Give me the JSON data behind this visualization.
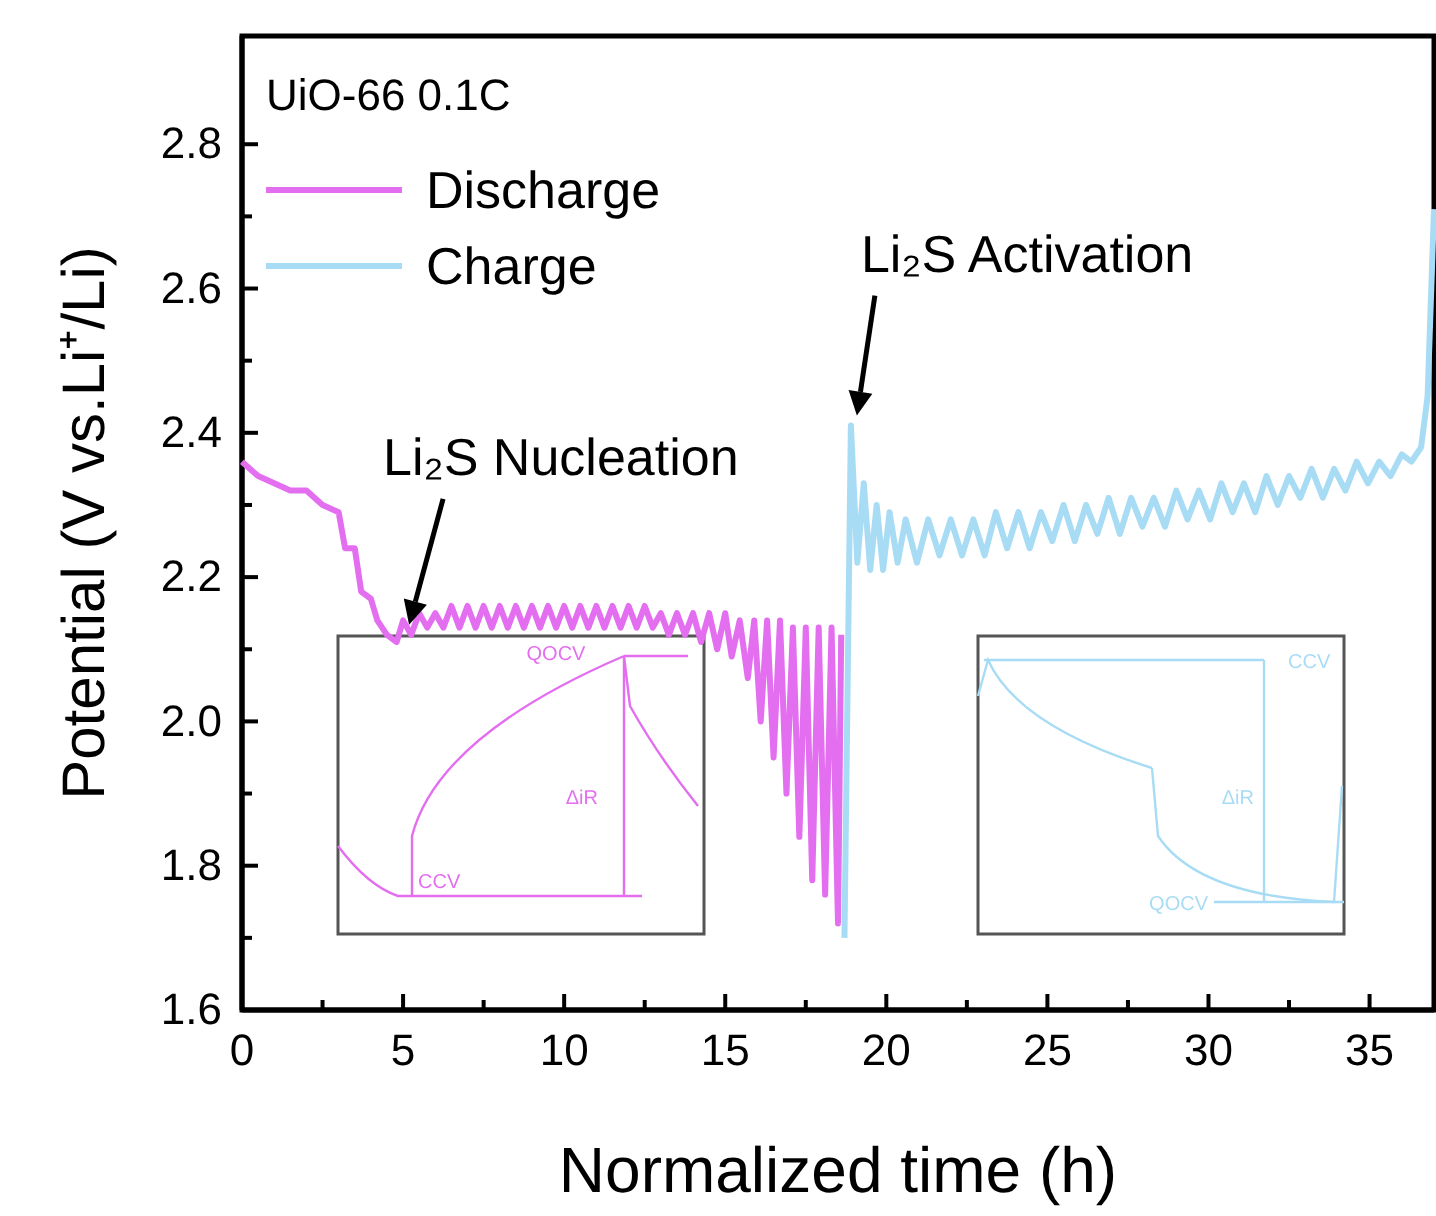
{
  "chart_data": {
    "type": "line",
    "xlabel": "Normalized time (h)",
    "ylabel": "Potential (V vs.Li⁺/Li)",
    "legend_title": "UiO-66 0.1C",
    "legend": "top left",
    "xlim": [
      0,
      37
    ],
    "ylim": [
      1.6,
      2.95
    ],
    "xticks": [
      0,
      {
        "value": 2.5,
        "label": null
      },
      5,
      {
        "value": 7.5,
        "label": null
      },
      10,
      {
        "value": 12.5,
        "label": null
      },
      15,
      {
        "value": 17.5,
        "label": null
      },
      20,
      {
        "value": 22.5,
        "label": null
      },
      25,
      {
        "value": 27.5,
        "label": null
      },
      30,
      {
        "value": 32.5,
        "label": null
      },
      35
    ],
    "yticks": [
      1.6,
      {
        "value": 1.7,
        "label": null
      },
      1.8,
      {
        "value": 1.9,
        "label": null
      },
      {
        "value": 2,
        "label": "2.0"
      },
      {
        "value": 2.1,
        "label": null
      },
      2.2,
      {
        "value": 2.3,
        "label": null
      },
      2.4,
      {
        "value": 2.5,
        "label": null
      },
      2.6,
      {
        "value": 2.7,
        "label": null
      },
      2.8
    ],
    "grid": false,
    "line_style": "solid",
    "marker": "none",
    "series": [
      {
        "name": "Discharge",
        "color": "#e36ef0",
        "x": [
          0,
          0.5,
          1,
          1.5,
          2,
          2.5,
          3,
          3.2,
          3.5,
          3.7,
          4,
          4.2,
          4.5,
          4.8,
          5,
          5.25,
          5.5,
          5.75,
          6,
          6.25,
          6.5,
          6.75,
          7,
          7.25,
          7.5,
          7.75,
          8,
          8.25,
          8.5,
          8.75,
          9,
          9.25,
          9.5,
          9.75,
          10,
          10.25,
          10.5,
          10.75,
          11,
          11.25,
          11.5,
          11.75,
          12,
          12.25,
          12.5,
          12.75,
          13,
          13.25,
          13.5,
          13.75,
          14,
          14.25,
          14.5,
          14.75,
          15,
          15.2,
          15.45,
          15.7,
          15.9,
          16.1,
          16.3,
          16.5,
          16.7,
          16.9,
          17.1,
          17.3,
          17.5,
          17.7,
          17.9,
          18.1,
          18.3,
          18.5,
          18.6
        ],
        "values": [
          2.36,
          2.34,
          2.33,
          2.32,
          2.32,
          2.3,
          2.29,
          2.24,
          2.24,
          2.18,
          2.17,
          2.14,
          2.12,
          2.11,
          2.14,
          2.12,
          2.15,
          2.13,
          2.15,
          2.13,
          2.16,
          2.13,
          2.16,
          2.13,
          2.16,
          2.13,
          2.16,
          2.13,
          2.16,
          2.13,
          2.16,
          2.13,
          2.16,
          2.13,
          2.16,
          2.13,
          2.16,
          2.13,
          2.16,
          2.13,
          2.16,
          2.13,
          2.16,
          2.13,
          2.16,
          2.13,
          2.15,
          2.12,
          2.15,
          2.12,
          2.15,
          2.11,
          2.15,
          2.1,
          2.15,
          2.09,
          2.14,
          2.06,
          2.14,
          2.0,
          2.14,
          1.95,
          2.14,
          1.9,
          2.13,
          1.84,
          2.13,
          1.78,
          2.13,
          1.76,
          2.13,
          1.72,
          2.12
        ]
      },
      {
        "name": "Charge",
        "color": "#a8dcf5",
        "x": [
          18.7,
          18.9,
          19.1,
          19.3,
          19.5,
          19.7,
          19.9,
          20.1,
          20.35,
          20.6,
          20.95,
          21.3,
          21.65,
          22,
          22.35,
          22.7,
          23.05,
          23.4,
          23.75,
          24.1,
          24.45,
          24.8,
          25.15,
          25.5,
          25.85,
          26.2,
          26.55,
          26.9,
          27.25,
          27.6,
          27.95,
          28.3,
          28.65,
          29,
          29.35,
          29.7,
          30.05,
          30.4,
          30.75,
          31.1,
          31.45,
          31.8,
          32.15,
          32.5,
          32.85,
          33.2,
          33.55,
          33.9,
          34.25,
          34.6,
          34.95,
          35.3,
          35.65,
          36,
          36.3,
          36.6,
          36.8,
          37
        ],
        "values": [
          1.7,
          2.41,
          2.22,
          2.33,
          2.21,
          2.3,
          2.21,
          2.29,
          2.22,
          2.28,
          2.22,
          2.28,
          2.23,
          2.28,
          2.23,
          2.28,
          2.23,
          2.29,
          2.24,
          2.29,
          2.24,
          2.29,
          2.25,
          2.3,
          2.25,
          2.3,
          2.26,
          2.31,
          2.26,
          2.31,
          2.27,
          2.31,
          2.27,
          2.32,
          2.28,
          2.32,
          2.28,
          2.33,
          2.29,
          2.33,
          2.29,
          2.34,
          2.3,
          2.34,
          2.31,
          2.35,
          2.31,
          2.35,
          2.32,
          2.36,
          2.33,
          2.36,
          2.34,
          2.37,
          2.36,
          2.38,
          2.45,
          2.71
        ]
      }
    ],
    "annotations": [
      {
        "text": "Li₂S Nucleation",
        "x": 5,
        "y": 2.12
      },
      {
        "text": "Li₂S Activation",
        "x": 18.9,
        "y": 2.41
      },
      "QOCV",
      "CCV",
      "ΔiR",
      "CCV",
      "ΔiR",
      "QOCV"
    ]
  }
}
